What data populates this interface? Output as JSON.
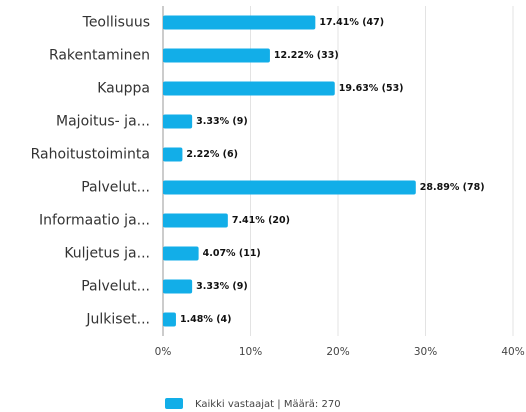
{
  "chart_data": {
    "type": "barh",
    "categories": [
      "Teollisuus",
      "Rakentaminen",
      "Kauppa",
      "Majoitus- ja...",
      "Rahoitustoiminta",
      "Palvelut...",
      "Informaatio ja...",
      "Kuljetus ja...",
      "Palvelut...",
      "Julkiset..."
    ],
    "series": [
      {
        "name": "Kaikki vastaajat | Määrä: 270",
        "color": "#12aee8",
        "values": [
          17.41,
          12.22,
          19.63,
          3.33,
          2.22,
          28.89,
          7.41,
          4.07,
          3.33,
          1.48
        ],
        "value_labels": [
          "17.41% (47)",
          "12.22% (33)",
          "19.63% (53)",
          "3.33% (9)",
          "2.22% (6)",
          "28.89% (78)",
          "7.41% (20)",
          "4.07% (11)",
          "3.33% (9)",
          "1.48% (4)"
        ]
      }
    ],
    "xlim": [
      0,
      40
    ],
    "xticks": [
      {
        "value": 0,
        "label": "0%"
      },
      {
        "value": 10,
        "label": "10%"
      },
      {
        "value": 20,
        "label": "20%"
      },
      {
        "value": 30,
        "label": "30%"
      },
      {
        "value": 40,
        "label": "40%"
      }
    ],
    "grid": true
  }
}
